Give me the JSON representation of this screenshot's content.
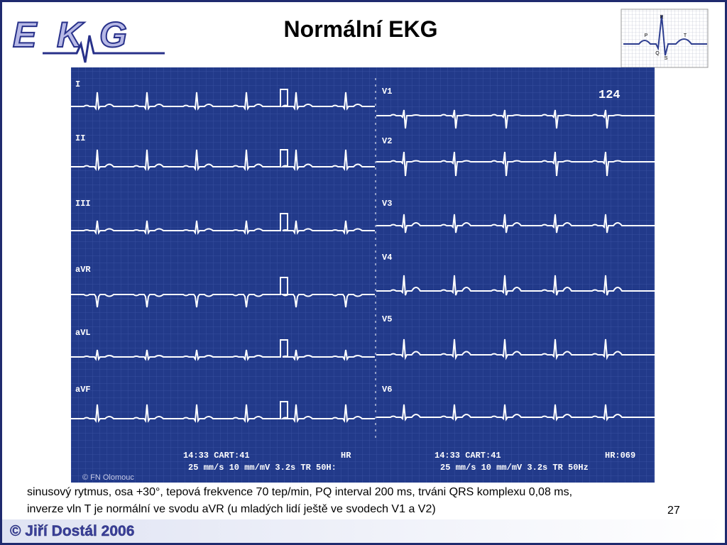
{
  "logo": {
    "letters": [
      "E",
      "K",
      "G"
    ]
  },
  "title": "Normální EKG",
  "icon": {
    "labels": [
      "R",
      "P",
      "T",
      "Q",
      "S"
    ]
  },
  "ecg": {
    "leads_left": [
      "I",
      "II",
      "III",
      "aVR",
      "aVL",
      "aVF"
    ],
    "leads_right": [
      "V1",
      "V2",
      "V3",
      "V4",
      "V5",
      "V6"
    ],
    "corner_number": "124",
    "footer_left": {
      "line1": "14:33 CART:41",
      "hr": "HR",
      "line2": "25 mm/s 10 mm/mV 3.2s TR 50H:"
    },
    "footer_right": {
      "line1": "14:33 CART:41",
      "hr": "HR:069",
      "line2": "25 mm/s 10 mm/mV 3.2s TR 50Hz"
    },
    "credit": "© FN Olomouc"
  },
  "caption": {
    "lines": [
      "sinusový rytmus, osa +30°, tepová frekvence 70 tep/min, PQ interval 200 ms, trváni QRS komplexu 0,08 ms,",
      "inverze vln T je normální ve svodu aVR (u mladých lidí ještě ve svodech V1 a V2)"
    ]
  },
  "page_number": "27",
  "author": "© Jiří Dostál 2006"
}
